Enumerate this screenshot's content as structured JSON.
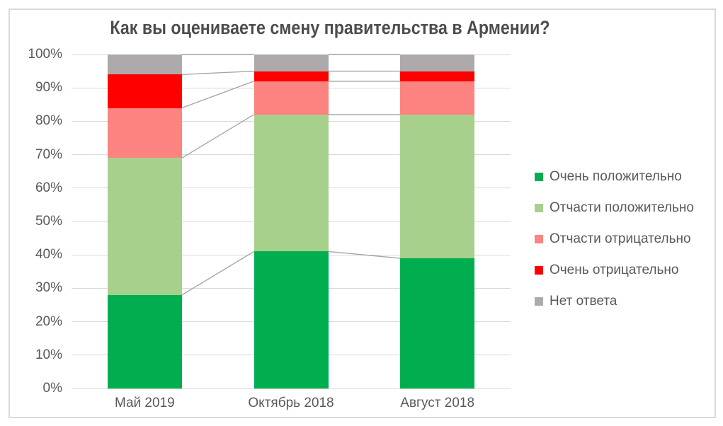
{
  "chart_data": {
    "type": "bar",
    "stacked": true,
    "percent": true,
    "title": "Как вы оцениваете смену правительства в Армении?",
    "categories": [
      "Май 2019",
      "Октябрь 2018",
      "Август 2018"
    ],
    "series": [
      {
        "name": "Очень положительно",
        "color": "#00ae50",
        "values": [
          28,
          41,
          39
        ]
      },
      {
        "name": "Отчасти положительно",
        "color": "#a8d08d",
        "values": [
          41,
          41,
          43
        ]
      },
      {
        "name": "Отчасти отрицательно",
        "color": "#fc8380",
        "values": [
          15,
          10,
          10
        ]
      },
      {
        "name": "Очень отрицательно",
        "color": "#fe0000",
        "values": [
          10,
          3,
          3
        ]
      },
      {
        "name": "Нет ответа",
        "color": "#aeaaab",
        "values": [
          6,
          5,
          5
        ]
      }
    ],
    "y_axis": {
      "ticks": [
        {
          "value": 0,
          "label": "0%"
        },
        {
          "value": 10,
          "label": "10%"
        },
        {
          "value": 20,
          "label": "20%"
        },
        {
          "value": 30,
          "label": "30%"
        },
        {
          "value": 40,
          "label": "40%"
        },
        {
          "value": 50,
          "label": "50%"
        },
        {
          "value": 60,
          "label": "60%"
        },
        {
          "value": 70,
          "label": "70%"
        },
        {
          "value": 80,
          "label": "80%"
        },
        {
          "value": 90,
          "label": "90%"
        },
        {
          "value": 100,
          "label": "100%"
        }
      ]
    },
    "ylim": [
      0,
      100
    ],
    "grid": true,
    "series_lines": true,
    "legend_position": "right"
  },
  "colors": {
    "grid": "#d9d9d9",
    "connector": "#a6a6a6",
    "axis_text": "#595959",
    "title_text": "#4d4d4d",
    "frame_border": "#d9d9d9",
    "background": "#ffffff"
  }
}
